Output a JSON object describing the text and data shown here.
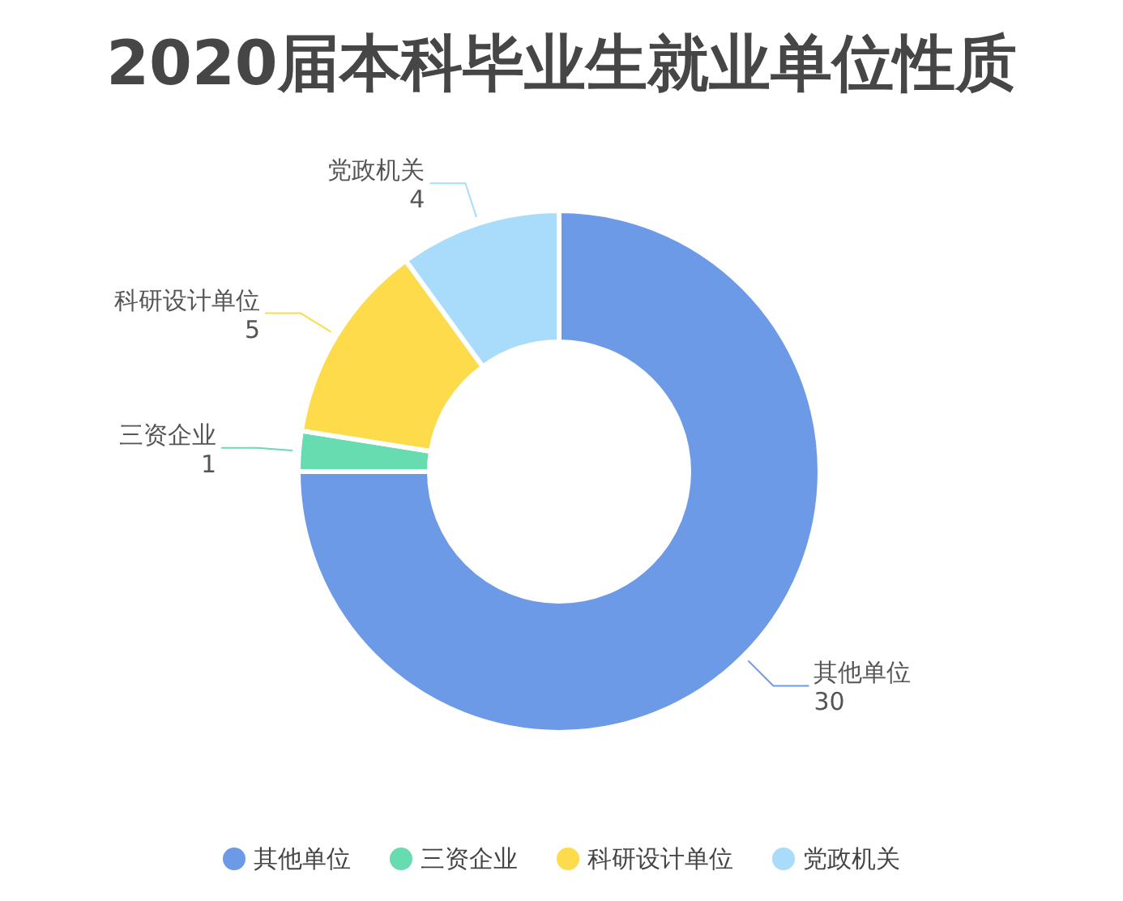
{
  "chart_data": {
    "type": "donut",
    "title": "2020届本科毕业生就业单位性质",
    "categories": [
      "其他单位",
      "三资企业",
      "科研设计单位",
      "党政机关"
    ],
    "values": [
      30,
      1,
      5,
      4
    ],
    "colors": [
      "#6d9ae6",
      "#67dcb1",
      "#fedb4a",
      "#a8dcfa"
    ],
    "data_labels": true,
    "legend": "bottom"
  }
}
